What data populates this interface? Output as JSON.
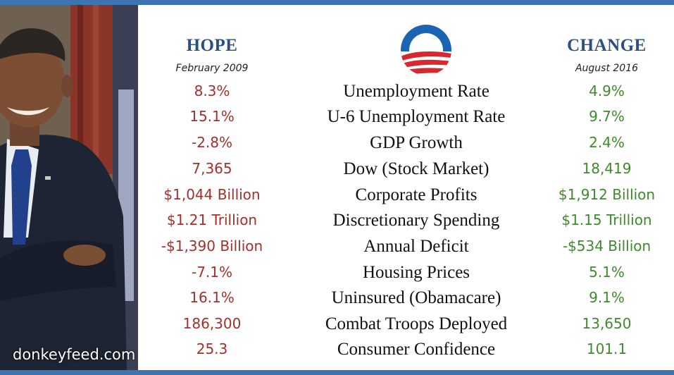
{
  "watermark": "donkeyfeed.com",
  "hope_heading": "HOPE",
  "hope_date": "February 2009",
  "change_heading": "CHANGE",
  "change_date": "August 2016",
  "logo_icon": "obama-campaign-logo-icon",
  "colors": {
    "border": "#3f74b3",
    "heading": "#2c4e87",
    "hope_value": "#a3302b",
    "change_value": "#3f8a2c"
  },
  "rows": [
    {
      "hope": "8.3%",
      "metric": "Unemployment Rate",
      "change": "4.9%"
    },
    {
      "hope": "15.1%",
      "metric": "U-6 Unemployment Rate",
      "change": "9.7%"
    },
    {
      "hope": "-2.8%",
      "metric": "GDP Growth",
      "change": "2.4%"
    },
    {
      "hope": "7,365",
      "metric": "Dow (Stock Market)",
      "change": "18,419"
    },
    {
      "hope": "$1,044 Billion",
      "metric": "Corporate Profits",
      "change": "$1,912 Billion"
    },
    {
      "hope": "$1.21 Trillion",
      "metric": "Discretionary Spending",
      "change": "$1.15 Trillion"
    },
    {
      "hope": "-$1,390 Billion",
      "metric": "Annual Deficit",
      "change": "-$534 Billion"
    },
    {
      "hope": "-7.1%",
      "metric": "Housing Prices",
      "change": "5.1%"
    },
    {
      "hope": "16.1%",
      "metric": "Uninsured (Obamacare)",
      "change": "9.1%"
    },
    {
      "hope": "186,300",
      "metric": "Combat Troops Deployed",
      "change": "13,650"
    },
    {
      "hope": "25.3",
      "metric": "Consumer Confidence",
      "change": "101.1"
    }
  ]
}
